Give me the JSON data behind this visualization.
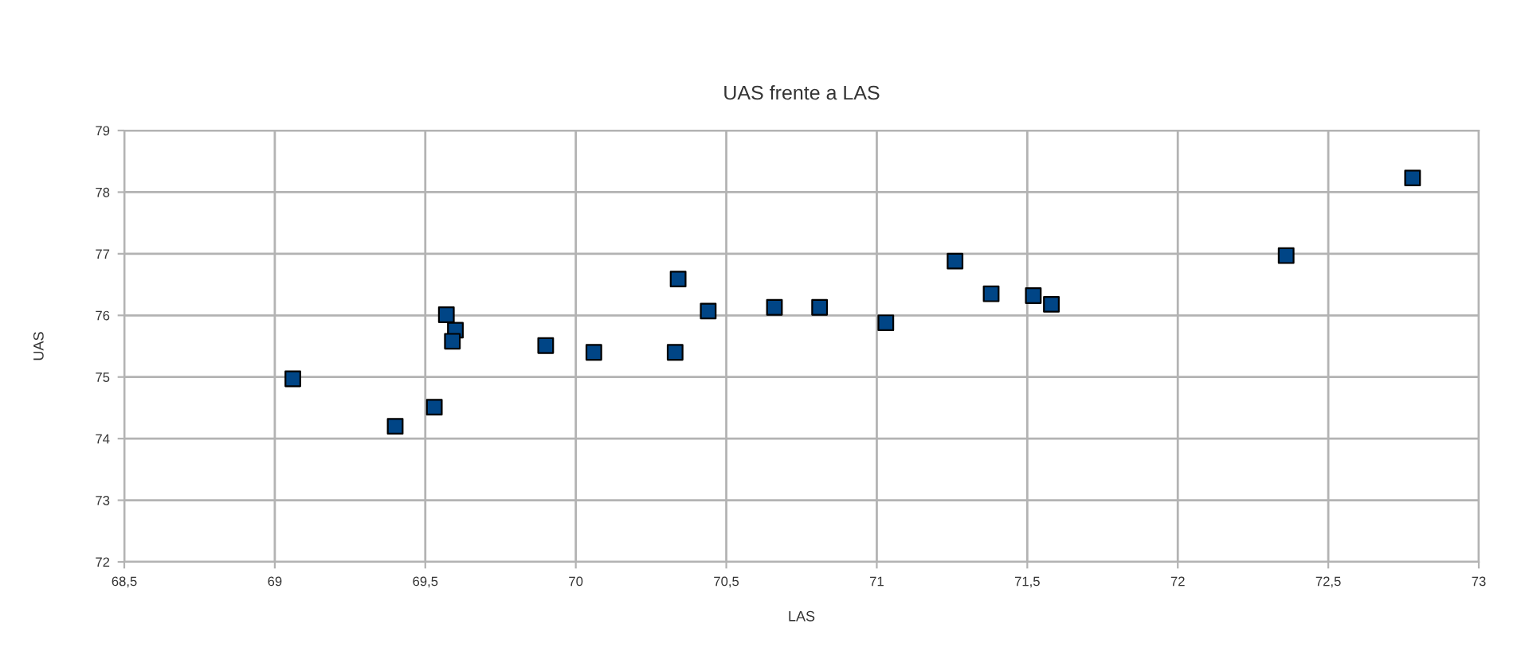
{
  "chart_data": {
    "type": "scatter",
    "title": "UAS frente a LAS",
    "xlabel": "LAS",
    "ylabel": "UAS",
    "x": [
      69.06,
      69.4,
      69.53,
      69.57,
      69.6,
      69.59,
      69.9,
      70.06,
      70.33,
      70.34,
      70.44,
      70.66,
      70.81,
      71.03,
      71.26,
      71.38,
      71.52,
      71.58,
      72.36,
      72.78
    ],
    "series": [
      {
        "color": "#004586",
        "values": [
          74.97,
          74.2,
          74.51,
          76.01,
          75.76,
          75.58,
          75.51,
          75.4,
          75.4,
          76.59,
          76.07,
          76.13,
          76.13,
          75.88,
          76.88,
          76.35,
          76.32,
          76.18,
          76.97,
          78.23
        ]
      }
    ],
    "xlim": [
      68.5,
      73
    ],
    "ylim": [
      72,
      79
    ],
    "xticks": [
      {
        "value": 68.5,
        "label": "68,5"
      },
      69,
      {
        "value": 69.5,
        "label": "69,5"
      },
      70,
      {
        "value": 70.5,
        "label": "70,5"
      },
      71,
      {
        "value": 71.5,
        "label": "71,5"
      },
      72,
      {
        "value": 72.5,
        "label": "72,5"
      },
      73
    ],
    "yticks": [
      72,
      73,
      74,
      75,
      76,
      77,
      78,
      79
    ],
    "grid": true,
    "marker": "square",
    "legend": false
  }
}
